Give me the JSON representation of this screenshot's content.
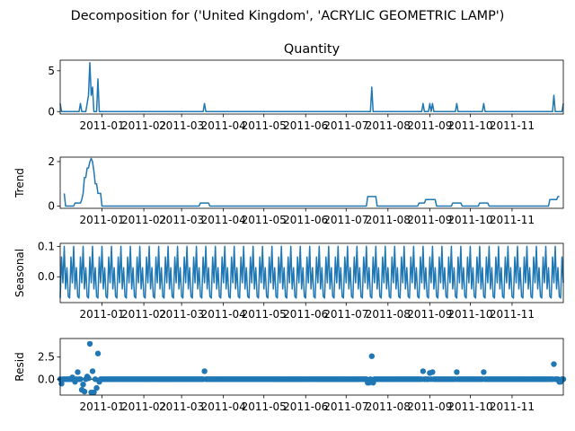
{
  "title": "Decomposition for ('United Kingdom', 'ACRYLIC GEOMETRIC LAMP')",
  "line_color": "#1f77b4",
  "x_tick_labels": [
    "2011-01",
    "2011-02",
    "2011-03",
    "2011-04",
    "2011-05",
    "2011-06",
    "2011-07",
    "2011-08",
    "2011-09",
    "2011-10",
    "2011-11"
  ],
  "chart_data": [
    {
      "type": "line",
      "panel": "observed",
      "title": "Quantity",
      "ylabel": "",
      "x_range": [
        "2010-12-01",
        "2011-12-09"
      ],
      "ylim": [
        -0.3,
        6.3
      ],
      "yticks": [
        0,
        5
      ],
      "ytick_labels": [
        "0",
        "5"
      ],
      "points": [
        [
          "2010-12-01",
          1.0
        ],
        [
          "2010-12-02",
          0
        ],
        [
          "2010-12-15",
          0
        ],
        [
          "2010-12-16",
          1.0
        ],
        [
          "2010-12-17",
          0
        ],
        [
          "2010-12-20",
          0
        ],
        [
          "2010-12-21",
          1.0
        ],
        [
          "2010-12-22",
          2.0
        ],
        [
          "2010-12-23",
          6.0
        ],
        [
          "2010-12-24",
          2.0
        ],
        [
          "2010-12-25",
          3.0
        ],
        [
          "2010-12-26",
          0
        ],
        [
          "2010-12-28",
          0
        ],
        [
          "2010-12-29",
          4.0
        ],
        [
          "2010-12-30",
          0
        ],
        [
          "2011-03-17",
          0
        ],
        [
          "2011-03-18",
          1.0
        ],
        [
          "2011-03-19",
          0
        ],
        [
          "2011-07-19",
          0
        ],
        [
          "2011-07-20",
          3.0
        ],
        [
          "2011-07-21",
          0
        ],
        [
          "2011-08-26",
          0
        ],
        [
          "2011-08-27",
          1.0
        ],
        [
          "2011-08-28",
          0
        ],
        [
          "2011-08-31",
          0
        ],
        [
          "2011-09-01",
          1.0
        ],
        [
          "2011-09-02",
          0
        ],
        [
          "2011-09-03",
          1.0
        ],
        [
          "2011-09-04",
          0
        ],
        [
          "2011-09-20",
          0
        ],
        [
          "2011-09-21",
          1.0
        ],
        [
          "2011-09-22",
          0
        ],
        [
          "2011-10-10",
          0
        ],
        [
          "2011-10-11",
          1.0
        ],
        [
          "2011-10-12",
          0
        ],
        [
          "2011-12-01",
          0
        ],
        [
          "2011-12-02",
          2.0
        ],
        [
          "2011-12-03",
          0
        ],
        [
          "2011-12-08",
          0
        ],
        [
          "2011-12-09",
          1.0
        ]
      ]
    },
    {
      "type": "line",
      "panel": "trend",
      "title": "",
      "ylabel": "Trend",
      "x_range": [
        "2010-12-01",
        "2011-12-09"
      ],
      "ylim": [
        -0.1,
        2.2
      ],
      "yticks": [
        0,
        2
      ],
      "ytick_labels": [
        "0",
        "2"
      ],
      "points": [
        [
          "2010-12-04",
          0.57
        ],
        [
          "2010-12-05",
          0
        ],
        [
          "2010-12-11",
          0
        ],
        [
          "2010-12-12",
          0.14
        ],
        [
          "2010-12-16",
          0.14
        ],
        [
          "2010-12-17",
          0.29
        ],
        [
          "2010-12-18",
          0.57
        ],
        [
          "2010-12-19",
          1.29
        ],
        [
          "2010-12-20",
          1.29
        ],
        [
          "2010-12-21",
          1.71
        ],
        [
          "2010-12-22",
          1.71
        ],
        [
          "2010-12-23",
          2.0
        ],
        [
          "2010-12-24",
          2.14
        ],
        [
          "2010-12-25",
          2.0
        ],
        [
          "2010-12-26",
          1.57
        ],
        [
          "2010-12-27",
          1.0
        ],
        [
          "2010-12-28",
          1.0
        ],
        [
          "2010-12-29",
          0.57
        ],
        [
          "2010-12-31",
          0.57
        ],
        [
          "2011-01-01",
          0.0
        ],
        [
          "2011-03-14",
          0.0
        ],
        [
          "2011-03-15",
          0.14
        ],
        [
          "2011-03-21",
          0.14
        ],
        [
          "2011-03-22",
          0.0
        ],
        [
          "2011-07-16",
          0.0
        ],
        [
          "2011-07-17",
          0.43
        ],
        [
          "2011-07-23",
          0.43
        ],
        [
          "2011-07-24",
          0.0
        ],
        [
          "2011-08-23",
          0.0
        ],
        [
          "2011-08-24",
          0.14
        ],
        [
          "2011-08-28",
          0.14
        ],
        [
          "2011-08-29",
          0.29
        ],
        [
          "2011-09-05",
          0.29
        ],
        [
          "2011-09-06",
          0.0
        ],
        [
          "2011-09-17",
          0.0
        ],
        [
          "2011-09-18",
          0.14
        ],
        [
          "2011-09-24",
          0.14
        ],
        [
          "2011-09-25",
          0.0
        ],
        [
          "2011-10-07",
          0.0
        ],
        [
          "2011-10-08",
          0.14
        ],
        [
          "2011-10-14",
          0.14
        ],
        [
          "2011-10-15",
          0.0
        ],
        [
          "2011-11-28",
          0.0
        ],
        [
          "2011-11-29",
          0.29
        ],
        [
          "2011-12-04",
          0.29
        ],
        [
          "2011-12-05",
          0.43
        ],
        [
          "2011-12-06",
          0.43
        ]
      ]
    },
    {
      "type": "line",
      "panel": "seasonal",
      "title": "",
      "ylabel": "Seasonal",
      "x_range": [
        "2010-12-01",
        "2011-12-09"
      ],
      "ylim": [
        -0.085,
        0.11
      ],
      "yticks": [
        0.0,
        0.1
      ],
      "ytick_labels": [
        "0.0",
        "0.1"
      ],
      "period_days": 7,
      "start": "2010-12-01",
      "weekly_pattern": [
        -0.07,
        0.065,
        -0.02,
        0.1,
        -0.04,
        0.03,
        -0.065
      ]
    },
    {
      "type": "scatter",
      "panel": "resid",
      "title": "",
      "ylabel": "Resid",
      "x_range": [
        "2010-12-01",
        "2011-12-09"
      ],
      "ylim": [
        -1.8,
        4.6
      ],
      "yticks": [
        0.0,
        2.5
      ],
      "ytick_labels": [
        "0.0",
        "2.5"
      ],
      "baseline": 0.0,
      "outliers": [
        [
          "2010-12-02",
          -0.5
        ],
        [
          "2010-12-10",
          0.2
        ],
        [
          "2010-12-12",
          -0.3
        ],
        [
          "2010-12-14",
          0.8
        ],
        [
          "2010-12-17",
          -1.2
        ],
        [
          "2010-12-18",
          -0.6
        ],
        [
          "2010-12-19",
          -1.4
        ],
        [
          "2010-12-21",
          0.3
        ],
        [
          "2010-12-22",
          0.1
        ],
        [
          "2010-12-23",
          4.0
        ],
        [
          "2010-12-24",
          -1.5
        ],
        [
          "2010-12-25",
          0.9
        ],
        [
          "2010-12-26",
          -1.5
        ],
        [
          "2010-12-28",
          -1.0
        ],
        [
          "2010-12-29",
          2.9
        ],
        [
          "2010-12-30",
          -0.3
        ],
        [
          "2011-03-18",
          0.9
        ],
        [
          "2011-07-17",
          -0.4
        ],
        [
          "2011-07-18",
          -0.4
        ],
        [
          "2011-07-20",
          2.6
        ],
        [
          "2011-07-21",
          -0.4
        ],
        [
          "2011-08-27",
          0.9
        ],
        [
          "2011-09-01",
          0.7
        ],
        [
          "2011-09-03",
          0.8
        ],
        [
          "2011-09-21",
          0.8
        ],
        [
          "2011-10-11",
          0.8
        ],
        [
          "2011-12-02",
          1.7
        ],
        [
          "2011-12-06",
          -0.3
        ],
        [
          "2011-12-07",
          -0.3
        ]
      ]
    }
  ]
}
